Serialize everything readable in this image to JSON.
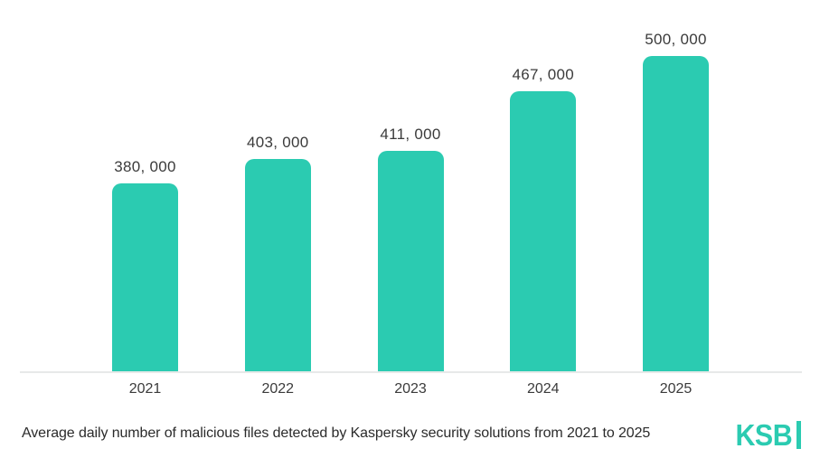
{
  "colors": {
    "accent": "#2BCBB1",
    "label_text": "#3B3B3B",
    "axis_line": "#E7E9E9",
    "caption_text": "#2B2B2B",
    "background": "#FFFFFF"
  },
  "chart_data": {
    "type": "bar",
    "title": "",
    "categories": [
      "2021",
      "2022",
      "2023",
      "2024",
      "2025"
    ],
    "values": [
      380000,
      403000,
      411000,
      467000,
      500000
    ],
    "value_labels": [
      "380, 000",
      "403, 000",
      "411, 000",
      "467, 000",
      "500, 000"
    ],
    "xlabel": "",
    "ylabel": "",
    "ylim": [
      203000,
      500000
    ],
    "grid": false,
    "legend": "none",
    "bar_color": "#2BCBB1"
  },
  "caption": "Average daily number of malicious files detected by Kaspersky security solutions from 2021 to 2025",
  "logo": {
    "text": "KSB"
  }
}
